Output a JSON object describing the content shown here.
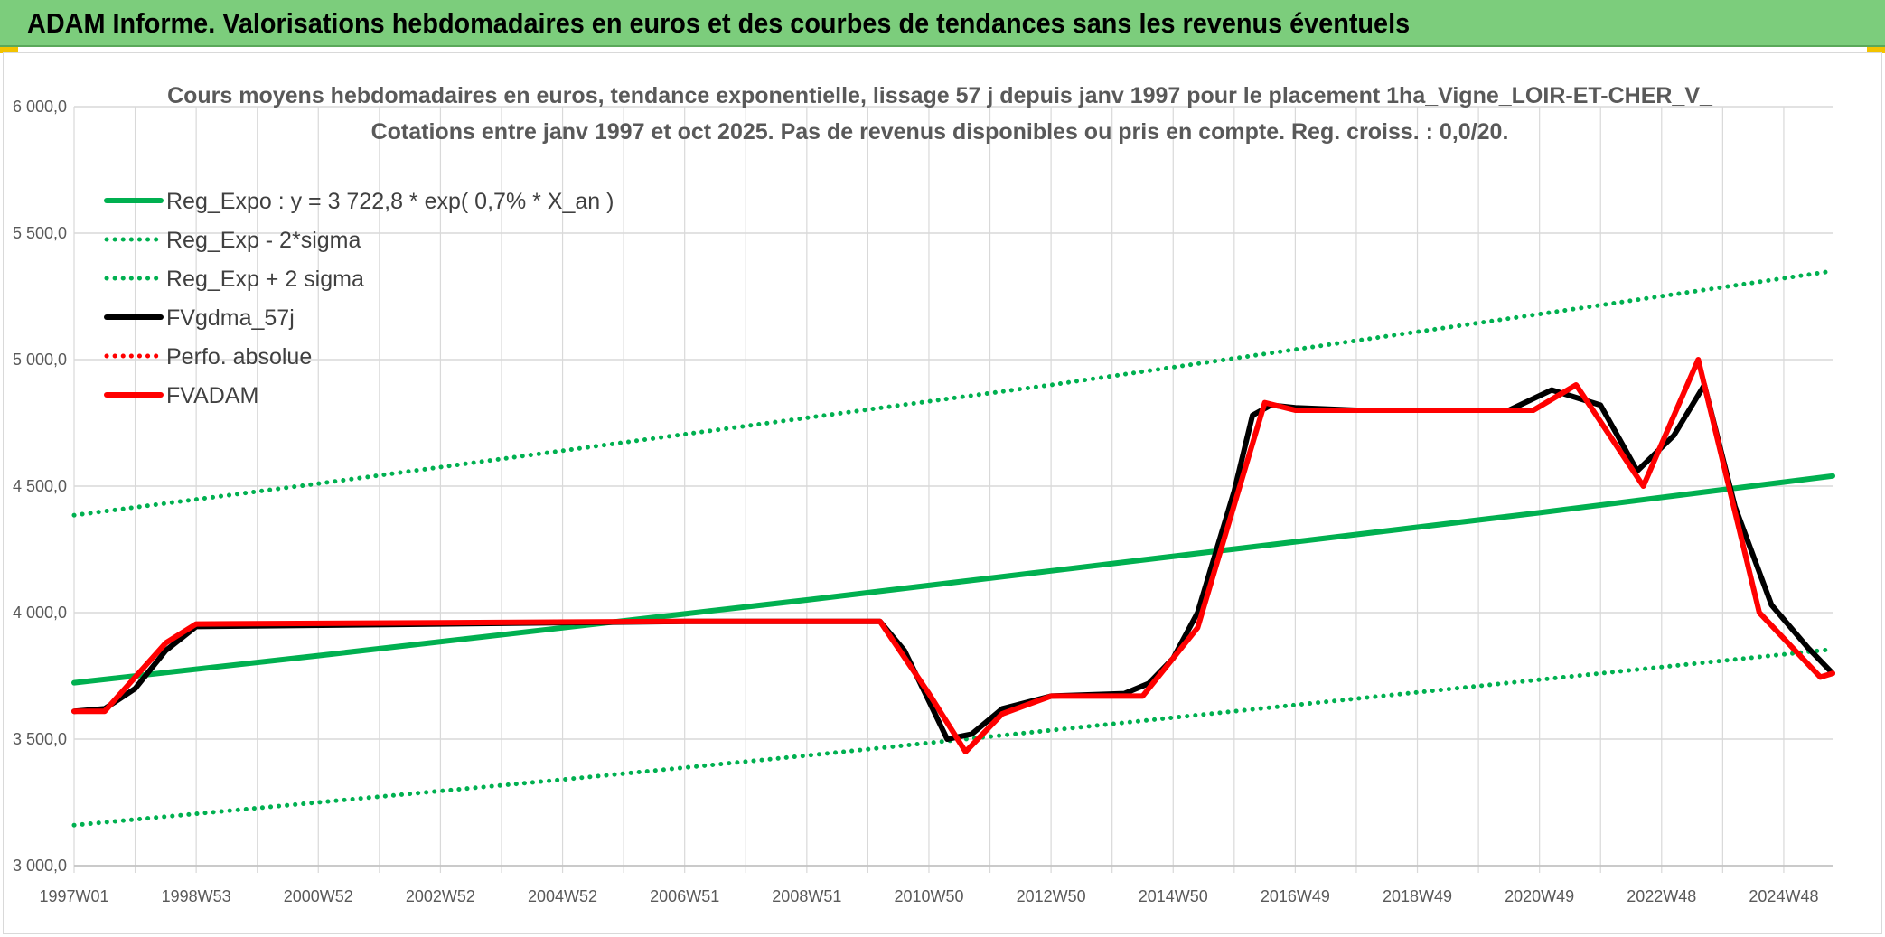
{
  "banner": {
    "title": "ADAM Informe. Valorisations hebdomadaires en euros et des courbes de tendances sans les revenus éventuels"
  },
  "colors": {
    "banner": "#7ccd7c",
    "green": "#00b050",
    "black": "#000000",
    "red": "#ff0000",
    "grid": "#d9d9d9",
    "text": "#595959"
  },
  "chart_data": {
    "type": "line",
    "title": "Cours moyens hebdomadaires en euros, tendance exponentielle, lissage 57 j depuis janv 1997 pour le placement 1ha_Vigne_LOIR-ET-CHER_V_",
    "subtitle": "Cotations entre janv 1997 et oct 2025. Pas de revenus disponibles ou pris en compte. Reg. croiss. : 0,0/20.",
    "xlabel": "",
    "ylabel": "",
    "ylim": [
      3000,
      6000
    ],
    "xlim": [
      1997.0,
      2025.8
    ],
    "grid": true,
    "legend_position": "top-left",
    "y_ticks": [
      {
        "value": 3000,
        "label": "3 000,0"
      },
      {
        "value": 3500,
        "label": "3 500,0"
      },
      {
        "value": 4000,
        "label": "4 000,0"
      },
      {
        "value": 4500,
        "label": "4 500,0"
      },
      {
        "value": 5000,
        "label": "5 000,0"
      },
      {
        "value": 5500,
        "label": "5 500,0"
      },
      {
        "value": 6000,
        "label": "6 000,0"
      }
    ],
    "x_ticks": [
      {
        "value": 1997.0,
        "label": "1997W01"
      },
      {
        "value": 1999.0,
        "label": "1998W53"
      },
      {
        "value": 2001.0,
        "label": "2000W52"
      },
      {
        "value": 2003.0,
        "label": "2002W52"
      },
      {
        "value": 2005.0,
        "label": "2004W52"
      },
      {
        "value": 2007.0,
        "label": "2006W51"
      },
      {
        "value": 2009.0,
        "label": "2008W51"
      },
      {
        "value": 2011.0,
        "label": "2010W50"
      },
      {
        "value": 2013.0,
        "label": "2012W50"
      },
      {
        "value": 2015.0,
        "label": "2014W50"
      },
      {
        "value": 2017.0,
        "label": "2016W49"
      },
      {
        "value": 2019.0,
        "label": "2018W49"
      },
      {
        "value": 2021.0,
        "label": "2020W49"
      },
      {
        "value": 2023.0,
        "label": "2022W48"
      },
      {
        "value": 2025.0,
        "label": "2024W48"
      }
    ],
    "series": [
      {
        "name": "Reg_Expo : y = 3 722,8 * exp( 0,7% *  X_an )",
        "color": "#00b050",
        "style": "solid",
        "x": [
          1997.0,
          2001.0,
          2005.0,
          2009.0,
          2013.0,
          2017.0,
          2021.0,
          2025.8
        ],
        "y": [
          3722.8,
          3830,
          3940,
          4050,
          4165,
          4280,
          4395,
          4540
        ]
      },
      {
        "name": "Reg_Exp - 2*sigma",
        "color": "#00b050",
        "style": "dotted",
        "x": [
          1997.0,
          2001.0,
          2005.0,
          2009.0,
          2013.0,
          2017.0,
          2021.0,
          2025.8
        ],
        "y": [
          3160,
          3250,
          3340,
          3435,
          3535,
          3635,
          3735,
          3855
        ]
      },
      {
        "name": "Reg_Exp + 2 sigma",
        "color": "#00b050",
        "style": "dotted",
        "x": [
          1997.0,
          2001.0,
          2005.0,
          2009.0,
          2013.0,
          2017.0,
          2021.0,
          2025.8
        ],
        "y": [
          4385,
          4510,
          4640,
          4770,
          4900,
          5040,
          5180,
          5350
        ]
      },
      {
        "name": "FVgdma_57j",
        "color": "#000000",
        "style": "solid",
        "x": [
          1997.0,
          1997.5,
          1998.0,
          1998.5,
          1999.0,
          2003.0,
          2007.0,
          2010.2,
          2010.6,
          2011.0,
          2011.3,
          2011.7,
          2012.2,
          2013.0,
          2014.2,
          2014.6,
          2015.0,
          2015.4,
          2016.0,
          2016.3,
          2016.6,
          2017.0,
          2018.0,
          2020.5,
          2021.2,
          2022.0,
          2022.6,
          2023.2,
          2023.7,
          2024.2,
          2024.8,
          2025.4,
          2025.8
        ],
        "y": [
          3610,
          3620,
          3700,
          3850,
          3945,
          3955,
          3965,
          3965,
          3850,
          3650,
          3500,
          3520,
          3620,
          3670,
          3680,
          3720,
          3820,
          4000,
          4480,
          4780,
          4820,
          4810,
          4800,
          4800,
          4880,
          4820,
          4560,
          4700,
          4900,
          4420,
          4030,
          3860,
          3760
        ]
      },
      {
        "name": "Perfo. absolue",
        "color": "#ff0000",
        "style": "dotted",
        "x": [],
        "y": []
      },
      {
        "name": "FVADAM",
        "color": "#ff0000",
        "style": "solid",
        "x": [
          1997.0,
          1997.5,
          1998.5,
          1999.0,
          2003.0,
          2007.0,
          2010.2,
          2011.0,
          2011.6,
          2012.2,
          2013.0,
          2014.5,
          2015.4,
          2016.5,
          2017.0,
          2019.0,
          2020.9,
          2021.6,
          2022.7,
          2023.6,
          2024.6,
          2025.6,
          2025.8
        ],
        "y": [
          3610,
          3610,
          3880,
          3955,
          3960,
          3965,
          3965,
          3680,
          3450,
          3600,
          3670,
          3670,
          3940,
          4830,
          4800,
          4800,
          4800,
          4900,
          4500,
          5000,
          4000,
          3745,
          3760
        ]
      }
    ]
  }
}
